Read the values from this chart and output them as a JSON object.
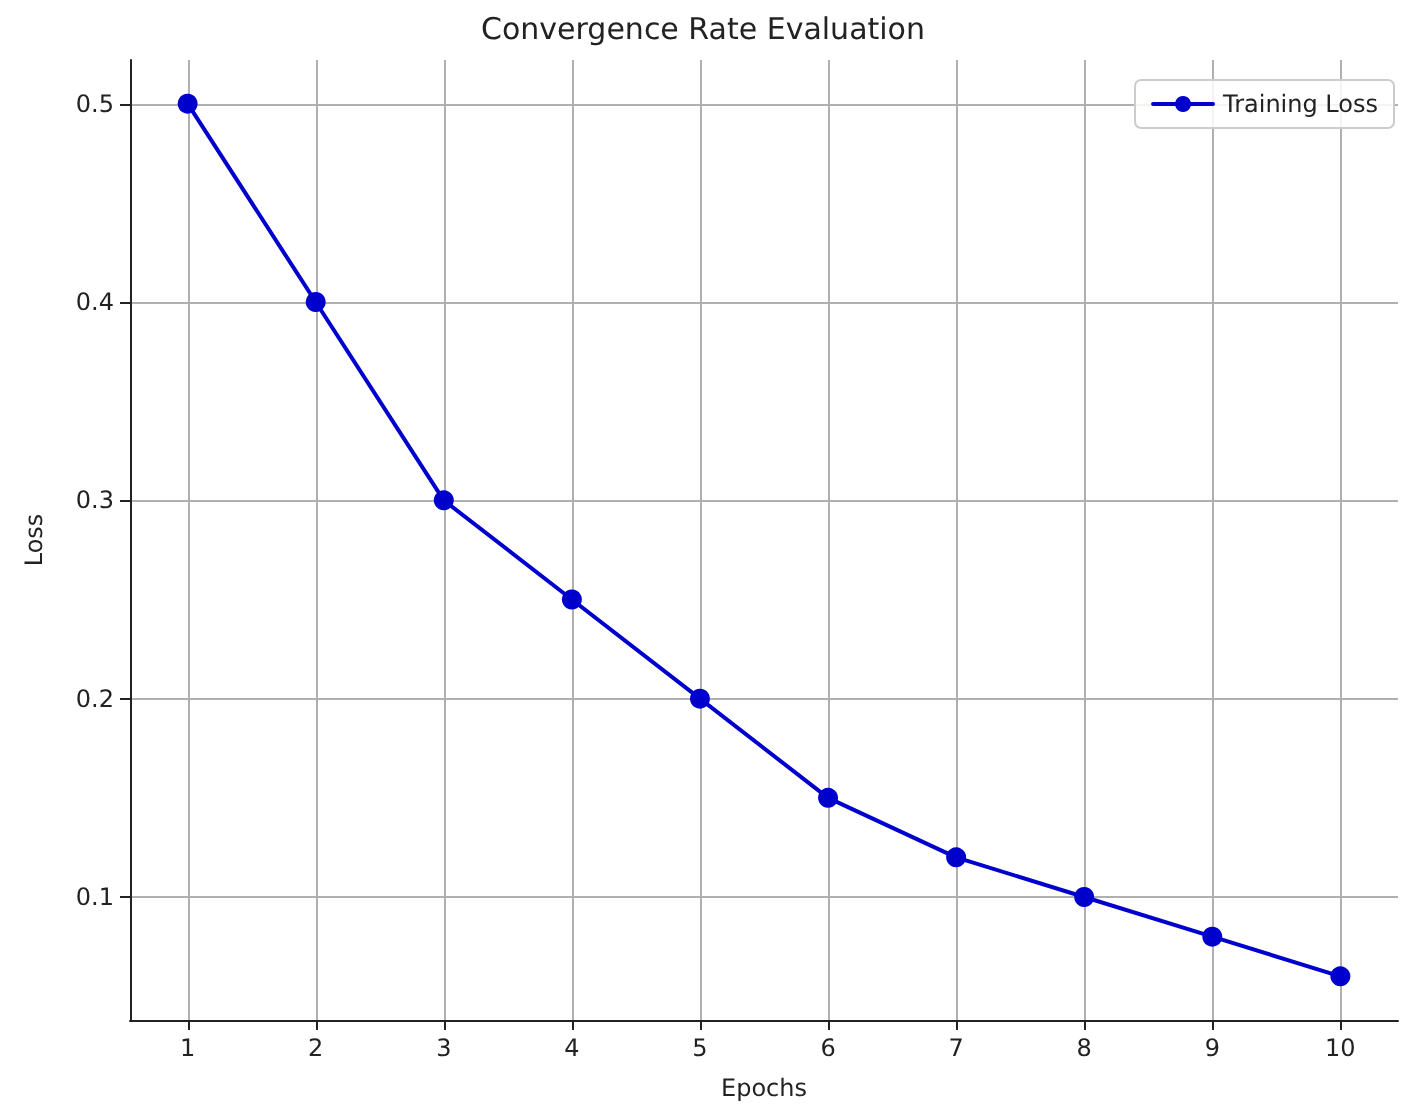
{
  "chart_data": {
    "type": "line",
    "title": "Convergence Rate Evaluation",
    "xlabel": "Epochs",
    "ylabel": "Loss",
    "x": [
      1,
      2,
      3,
      4,
      5,
      6,
      7,
      8,
      9,
      10
    ],
    "series": [
      {
        "name": "Training Loss",
        "color": "#0000cd",
        "values": [
          0.5,
          0.4,
          0.3,
          0.25,
          0.2,
          0.15,
          0.12,
          0.1,
          0.08,
          0.06
        ]
      }
    ],
    "xlim": [
      0.55,
      10.45
    ],
    "xticks": [
      1,
      2,
      3,
      4,
      5,
      6,
      7,
      8,
      9,
      10
    ],
    "ylim": [
      0.038,
      0.522
    ],
    "yticks": [
      0.1,
      0.2,
      0.3,
      0.4,
      0.5
    ],
    "grid": true,
    "legend": "top right",
    "marker": "circle",
    "line_style": "solid"
  }
}
